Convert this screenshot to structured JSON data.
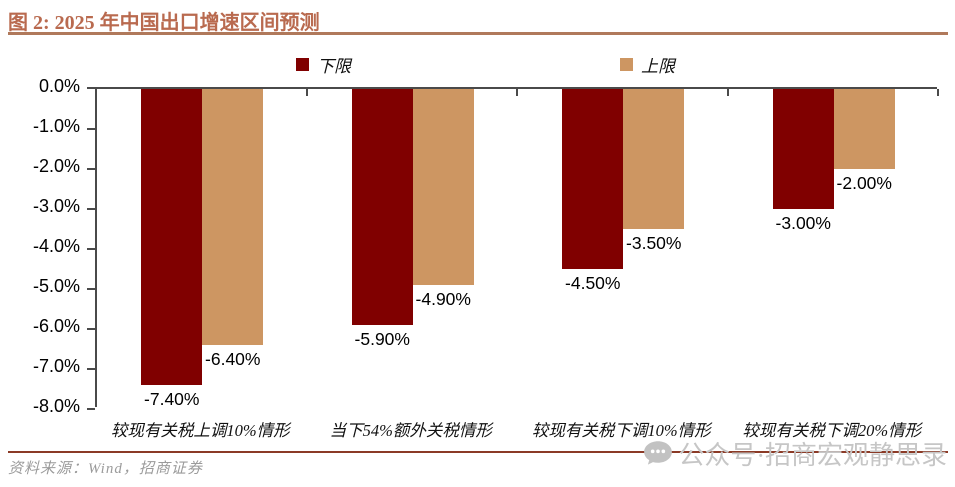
{
  "header": {
    "title": "图 2: 2025 年中国出口增速区间预测",
    "accent_color": "#B96A4F"
  },
  "chart_data": {
    "type": "bar",
    "title": "2025 年中国出口增速区间预测",
    "categories": [
      "较现有关税上调10%情形",
      "当下54%额外关税情形",
      "较现有关税下调10%情形",
      "较现有关税下调20%情形"
    ],
    "series": [
      {
        "name": "下限",
        "color": "#800000",
        "values": [
          -7.4,
          -5.9,
          -4.5,
          -3.0
        ],
        "labels": [
          "-7.40%",
          "-5.90%",
          "-4.50%",
          "-3.00%"
        ]
      },
      {
        "name": "上限",
        "color": "#CD9662",
        "values": [
          -6.4,
          -4.9,
          -3.5,
          -2.0
        ],
        "labels": [
          "-6.40%",
          "-4.90%",
          "-3.50%",
          "-2.00%"
        ]
      }
    ],
    "ylim": [
      -8,
      0
    ],
    "yticks": [
      "0.0%",
      "-1.0%",
      "-2.0%",
      "-3.0%",
      "-4.0%",
      "-5.0%",
      "-6.0%",
      "-7.0%",
      "-8.0%"
    ],
    "xlabel": "",
    "ylabel": "",
    "grid": false,
    "legend_position": "top",
    "data_labels": "outside-end"
  },
  "footer": {
    "source": "资料来源：Wind，招商证券"
  },
  "watermark": {
    "icon": "wechat-icon",
    "text": "公众号·招商宏观静思录"
  }
}
